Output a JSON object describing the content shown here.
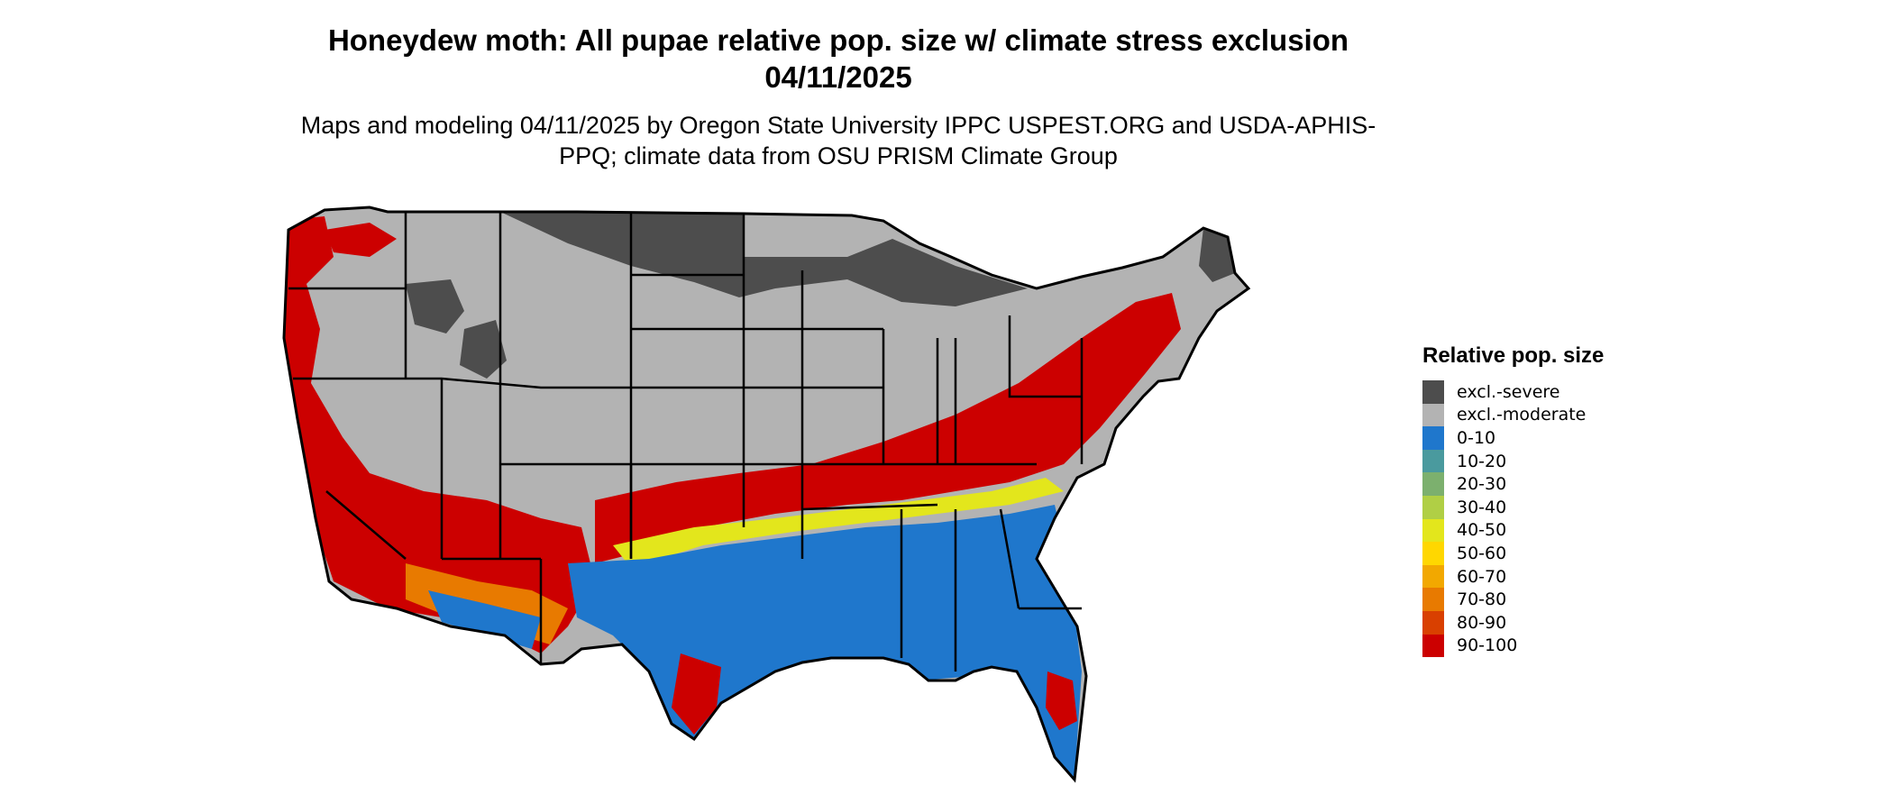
{
  "title": "Honeydew moth: All pupae relative pop. size w/ climate stress exclusion 04/11/2025",
  "subtitle": "Maps and modeling 04/11/2025 by Oregon State University IPPC USPEST.ORG and USDA-APHIS-PPQ; climate data from OSU PRISM Climate Group",
  "legend": {
    "title": "Relative pop. size",
    "items": [
      {
        "label": "excl.-severe",
        "color": "#4d4d4d"
      },
      {
        "label": "excl.-moderate",
        "color": "#b3b3b3"
      },
      {
        "label": "0-10",
        "color": "#1f77cc"
      },
      {
        "label": "10-20",
        "color": "#4a9a9e"
      },
      {
        "label": "20-30",
        "color": "#7cb06e"
      },
      {
        "label": "30-40",
        "color": "#b0cf45"
      },
      {
        "label": "40-50",
        "color": "#e3e61c"
      },
      {
        "label": "50-60",
        "color": "#ffd700"
      },
      {
        "label": "60-70",
        "color": "#f2a800"
      },
      {
        "label": "70-80",
        "color": "#e87a00"
      },
      {
        "label": "80-90",
        "color": "#d94000"
      },
      {
        "label": "90-100",
        "color": "#cc0000"
      }
    ]
  }
}
